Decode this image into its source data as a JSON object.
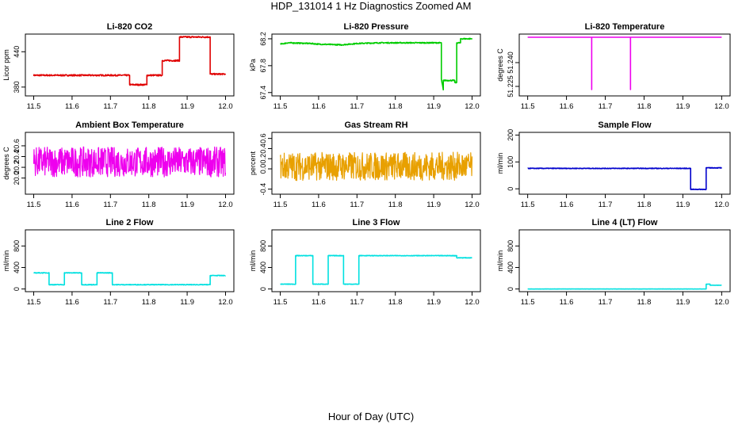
{
  "figure": {
    "title": "HDP_131014  1 Hz Diagnostics Zoomed AM",
    "xlabel": "Hour of Day (UTC)"
  },
  "chart_data": [
    {
      "type": "line",
      "title": "Li-820 CO2",
      "ylabel": "Licor ppm",
      "color": "#e00000",
      "xlim": [
        11.5,
        12.0
      ],
      "ylim": [
        365,
        470
      ],
      "xticks": [
        "11.5",
        "11.6",
        "11.7",
        "11.8",
        "11.9",
        "12.0"
      ],
      "yticks": [
        "380",
        "440"
      ],
      "x": [
        11.5,
        11.75,
        11.75,
        11.795,
        11.795,
        11.835,
        11.835,
        11.88,
        11.88,
        11.96,
        11.96,
        12.0
      ],
      "y": [
        400,
        400,
        384,
        384,
        400,
        400,
        425,
        425,
        465,
        465,
        402,
        402
      ],
      "noise": 1.2
    },
    {
      "type": "line",
      "title": "Li-820 Pressure",
      "ylabel": "kPa",
      "color": "#00cc00",
      "xlim": [
        11.5,
        12.0
      ],
      "ylim": [
        67.35,
        68.27
      ],
      "xticks": [
        "11.5",
        "11.6",
        "11.7",
        "11.8",
        "11.9",
        "12.0"
      ],
      "yticks": [
        "67.4",
        "67.8",
        "68.2"
      ],
      "x": [
        11.5,
        11.52,
        11.58,
        11.6,
        11.66,
        11.7,
        11.76,
        11.92,
        11.92,
        11.925,
        11.925,
        11.955,
        11.955,
        11.96,
        11.96,
        11.97,
        11.97,
        12.0
      ],
      "y": [
        68.12,
        68.14,
        68.13,
        68.12,
        68.11,
        68.13,
        68.14,
        68.14,
        67.6,
        67.44,
        67.58,
        67.58,
        67.55,
        67.55,
        68.14,
        68.14,
        68.2,
        68.2
      ],
      "noise": 0.008
    },
    {
      "type": "line",
      "title": "Li-820 Temperature",
      "ylabel": "degrees C",
      "color": "#ee00ee",
      "xlim": [
        11.5,
        12.0
      ],
      "ylim": [
        51.219,
        51.258
      ],
      "xticks": [
        "11.5",
        "11.6",
        "11.7",
        "11.8",
        "11.9",
        "12.0"
      ],
      "yticks": [
        "51.225",
        "51.240"
      ],
      "x": [
        11.5,
        11.665,
        11.665,
        11.665,
        11.765,
        11.765,
        11.765,
        12.0
      ],
      "y": [
        51.256,
        51.256,
        51.223,
        51.256,
        51.256,
        51.223,
        51.256,
        51.256
      ],
      "noise": 0
    },
    {
      "type": "line",
      "title": "Ambient Box Temperature",
      "ylabel": "degrees C",
      "color": "#ee00ee",
      "xlim": [
        11.5,
        12.0
      ],
      "ylim": [
        19.7,
        20.85
      ],
      "xticks": [
        "11.5",
        "11.6",
        "11.7",
        "11.8",
        "11.9",
        "12.0"
      ],
      "yticks": [
        "20.0",
        "20.2",
        "20.4",
        "20.6"
      ],
      "x": [
        11.5,
        12.0
      ],
      "y": [
        20.3,
        20.3
      ],
      "noise": 0.28
    },
    {
      "type": "line",
      "title": "Gas Stream RH",
      "ylabel": "percent",
      "color": "#e8a000",
      "xlim": [
        11.5,
        12.0
      ],
      "ylim": [
        -0.5,
        0.72
      ],
      "xticks": [
        "11.5",
        "11.6",
        "11.7",
        "11.8",
        "11.9",
        "12.0"
      ],
      "yticks": [
        "-0.4",
        "0.0",
        "0.2",
        "0.4",
        "0.6"
      ],
      "x": [
        11.5,
        12.0
      ],
      "y": [
        0.05,
        0.05
      ],
      "noise": 0.28
    },
    {
      "type": "line",
      "title": "Sample Flow",
      "ylabel": "ml/min",
      "color": "#0000cc",
      "xlim": [
        11.5,
        12.0
      ],
      "ylim": [
        -20,
        210
      ],
      "xticks": [
        "11.5",
        "11.6",
        "11.7",
        "11.8",
        "11.9",
        "12.0"
      ],
      "yticks": [
        "0",
        "100",
        "200"
      ],
      "x": [
        11.5,
        11.92,
        11.92,
        11.96,
        11.96,
        12.0
      ],
      "y": [
        76,
        76,
        -2,
        -2,
        78,
        78
      ],
      "noise": 1.2
    },
    {
      "type": "line",
      "title": "Line 2 Flow",
      "ylabel": "ml/min",
      "color": "#00e0e0",
      "xlim": [
        11.5,
        12.0
      ],
      "ylim": [
        -50,
        1100
      ],
      "xticks": [
        "11.5",
        "11.6",
        "11.7",
        "11.8",
        "11.9",
        "12.0"
      ],
      "yticks": [
        "0",
        "400",
        "800"
      ],
      "x": [
        11.5,
        11.54,
        11.54,
        11.58,
        11.58,
        11.625,
        11.625,
        11.665,
        11.665,
        11.705,
        11.705,
        11.96,
        11.96,
        12.0
      ],
      "y": [
        300,
        300,
        80,
        80,
        300,
        300,
        80,
        80,
        300,
        300,
        80,
        80,
        250,
        250
      ],
      "noise": 6
    },
    {
      "type": "line",
      "title": "Line 3 Flow",
      "ylabel": "ml/min",
      "color": "#00e0e0",
      "xlim": [
        11.5,
        12.0
      ],
      "ylim": [
        -50,
        1100
      ],
      "xticks": [
        "11.5",
        "11.6",
        "11.7",
        "11.8",
        "11.9",
        "12.0"
      ],
      "yticks": [
        "0",
        "400",
        "800"
      ],
      "x": [
        11.5,
        11.54,
        11.54,
        11.585,
        11.585,
        11.625,
        11.625,
        11.665,
        11.665,
        11.705,
        11.705,
        11.96,
        11.96,
        12.0
      ],
      "y": [
        90,
        90,
        620,
        620,
        90,
        90,
        620,
        620,
        90,
        90,
        620,
        620,
        580,
        580
      ],
      "noise": 5
    },
    {
      "type": "line",
      "title": "Line 4 (LT) Flow",
      "ylabel": "ml/min",
      "color": "#00e0e0",
      "xlim": [
        11.5,
        12.0
      ],
      "ylim": [
        -50,
        1100
      ],
      "xticks": [
        "11.5",
        "11.6",
        "11.7",
        "11.8",
        "11.9",
        "12.0"
      ],
      "yticks": [
        "0",
        "400",
        "800"
      ],
      "x": [
        11.5,
        11.96,
        11.96,
        11.97,
        11.97,
        12.0
      ],
      "y": [
        0,
        0,
        90,
        90,
        70,
        70
      ],
      "noise": 1.5
    }
  ]
}
